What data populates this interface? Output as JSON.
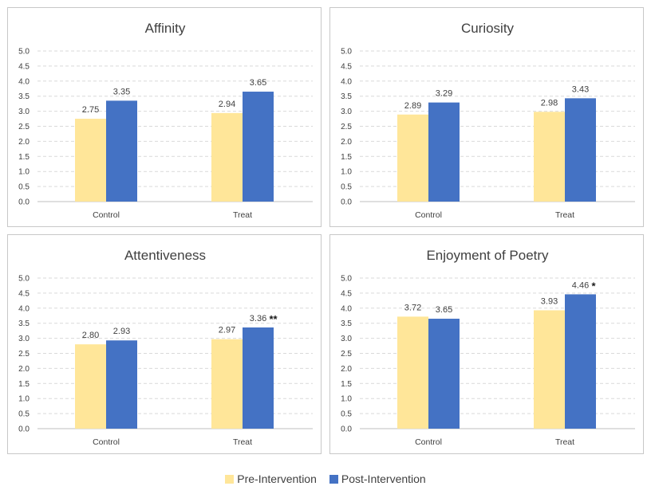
{
  "colors": {
    "pre": "#FFE699",
    "post": "#4472C4"
  },
  "legend": {
    "pre_label": "Pre-Intervention",
    "post_label": "Post-Intervention"
  },
  "chart_data": [
    {
      "type": "bar",
      "title": "Affinity",
      "categories": [
        "Control",
        "Treat"
      ],
      "series": [
        {
          "name": "Pre-Intervention",
          "values": [
            2.75,
            2.94
          ],
          "labels": [
            "2.75",
            "2.94"
          ]
        },
        {
          "name": "Post-Intervention",
          "values": [
            3.35,
            3.65
          ],
          "labels": [
            "3.35",
            "3.65"
          ],
          "annotations": [
            "",
            ""
          ]
        }
      ],
      "ylim": [
        0,
        5
      ],
      "yticks": [
        "0.0",
        "0.5",
        "1.0",
        "1.5",
        "2.0",
        "2.5",
        "3.0",
        "3.5",
        "4.0",
        "4.5",
        "5.0"
      ]
    },
    {
      "type": "bar",
      "title": "Curiosity",
      "categories": [
        "Control",
        "Treat"
      ],
      "series": [
        {
          "name": "Pre-Intervention",
          "values": [
            2.89,
            2.98
          ],
          "labels": [
            "2.89",
            "2.98"
          ]
        },
        {
          "name": "Post-Intervention",
          "values": [
            3.29,
            3.43
          ],
          "labels": [
            "3.29",
            "3.43"
          ],
          "annotations": [
            "",
            ""
          ]
        }
      ],
      "ylim": [
        0,
        5
      ],
      "yticks": [
        "0.0",
        "0.5",
        "1.0",
        "1.5",
        "2.0",
        "2.5",
        "3.0",
        "3.5",
        "4.0",
        "4.5",
        "5.0"
      ]
    },
    {
      "type": "bar",
      "title": "Attentiveness",
      "categories": [
        "Control",
        "Treat"
      ],
      "series": [
        {
          "name": "Pre-Intervention",
          "values": [
            2.8,
            2.97
          ],
          "labels": [
            "2.80",
            "2.97"
          ]
        },
        {
          "name": "Post-Intervention",
          "values": [
            2.93,
            3.36
          ],
          "labels": [
            "2.93",
            "3.36"
          ],
          "annotations": [
            "",
            "**"
          ]
        }
      ],
      "ylim": [
        0,
        5
      ],
      "yticks": [
        "0.0",
        "0.5",
        "1.0",
        "1.5",
        "2.0",
        "2.5",
        "3.0",
        "3.5",
        "4.0",
        "4.5",
        "5.0"
      ]
    },
    {
      "type": "bar",
      "title": "Enjoyment of Poetry",
      "categories": [
        "Control",
        "Treat"
      ],
      "series": [
        {
          "name": "Pre-Intervention",
          "values": [
            3.72,
            3.93
          ],
          "labels": [
            "3.72",
            "3.93"
          ]
        },
        {
          "name": "Post-Intervention",
          "values": [
            3.65,
            4.46
          ],
          "labels": [
            "3.65",
            "4.46"
          ],
          "annotations": [
            "",
            "*"
          ]
        }
      ],
      "ylim": [
        0,
        5
      ],
      "yticks": [
        "0.0",
        "0.5",
        "1.0",
        "1.5",
        "2.0",
        "2.5",
        "3.0",
        "3.5",
        "4.0",
        "4.5",
        "5.0"
      ]
    }
  ]
}
